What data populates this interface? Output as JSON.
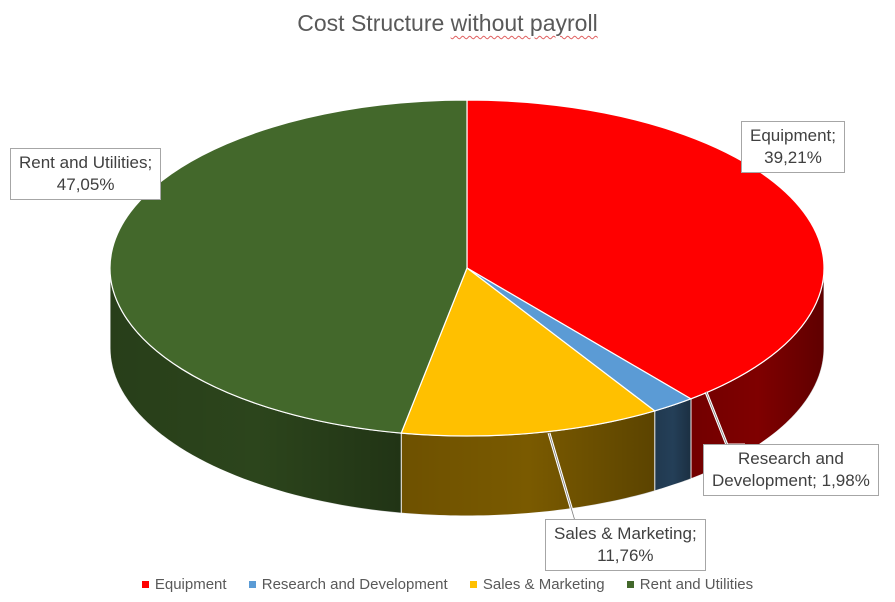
{
  "chart_data": {
    "type": "pie",
    "title": "Cost Structure without payroll",
    "title_parts": [
      "Cost Structure ",
      "without payroll"
    ],
    "slices": [
      {
        "name": "Equipment",
        "value": 39.21,
        "label_name": "Equipment;",
        "label_value": "39,21%",
        "color": "#ff0000",
        "side_color": "#7f0000"
      },
      {
        "name": "Research and Development",
        "value": 1.98,
        "label_name": "Research and",
        "label_value": "Development; 1,98%",
        "color": "#5b9bd5",
        "side_color": "#243f58"
      },
      {
        "name": "Sales & Marketing",
        "value": 11.76,
        "label_name": "Sales & Marketing;",
        "label_value": "11,76%",
        "color": "#ffc000",
        "side_color": "#7a5a00"
      },
      {
        "name": "Rent and Utilities",
        "value": 47.05,
        "label_name": "Rent and Utilities;",
        "label_value": "47,05%",
        "color": "#43682b",
        "side_color": "#2c451c"
      }
    ],
    "legend_position": "bottom"
  }
}
